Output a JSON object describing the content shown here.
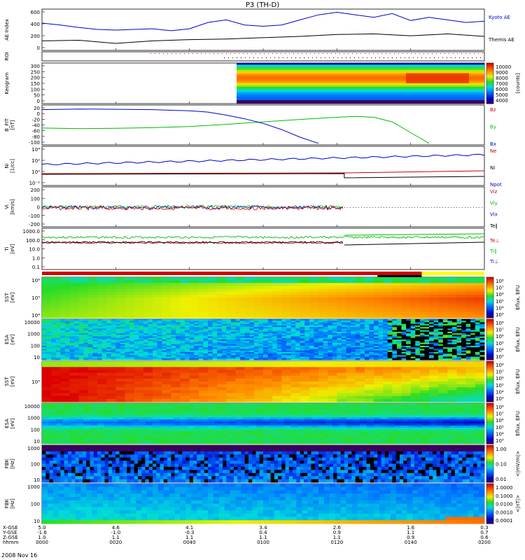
{
  "chart_data": {
    "type": "multi-panel summary plot",
    "title": "P3 (TH-D)",
    "date": "2008 Nov 16",
    "time_range": [
      "0000",
      "0200"
    ],
    "panels": [
      {
        "id": "ae",
        "type": "line",
        "ylabel": "AE Index",
        "yticks": [
          "600",
          "400",
          "200",
          "0"
        ],
        "ylim": [
          0,
          650
        ],
        "series": [
          {
            "name": "Kyoto AE",
            "color": "#0000cc",
            "x": [
              0,
              5,
              10,
              15,
              20,
              25,
              30,
              35,
              40,
              45,
              50,
              55,
              60,
              65,
              70,
              75,
              80,
              85,
              90,
              95,
              100,
              105,
              110,
              115,
              120
            ],
            "values": [
              430,
              400,
              360,
              330,
              320,
              330,
              340,
              310,
              340,
              440,
              480,
              400,
              380,
              400,
              480,
              560,
              600,
              560,
              520,
              580,
              470,
              520,
              480,
              440,
              460
            ]
          },
          {
            "name": "Themis AE",
            "color": "#000000",
            "x": [
              0,
              10,
              20,
              30,
              40,
              50,
              60,
              70,
              80,
              90,
              100,
              110,
              120
            ],
            "values": [
              150,
              160,
              110,
              150,
              170,
              180,
              200,
              220,
              250,
              260,
              230,
              260,
              220
            ]
          }
        ]
      },
      {
        "id": "roi",
        "type": "markers",
        "ylabel": "ROI"
      },
      {
        "id": "keogram",
        "type": "heatmap",
        "ylabel": "Keogram",
        "yticks": [
          "300",
          "250",
          "200",
          "150",
          "100",
          "50",
          "0"
        ],
        "colorbar": {
          "ticks": [
            "10000",
            "9000",
            "8000",
            "7000",
            "6000",
            "5000",
            "4000"
          ],
          "label": "[counts]"
        }
      },
      {
        "id": "bfgm",
        "type": "line",
        "ylabel": "B_FIT",
        "yunits": "[nT]",
        "yticks": [
          "20",
          "0",
          "-20",
          "-40",
          "-60",
          "-80",
          "-100"
        ],
        "ylim": [
          -105,
          25
        ],
        "series": [
          {
            "name": "Bz",
            "color": "#cc0000",
            "x": [],
            "values": []
          },
          {
            "name": "By",
            "color": "#00bb00",
            "x": [
              0,
              10,
              20,
              30,
              40,
              50,
              60,
              70,
              80,
              85,
              90,
              95,
              100,
              105
            ],
            "values": [
              -50,
              -52,
              -51,
              -49,
              -45,
              -38,
              -30,
              -22,
              -15,
              -12,
              -15,
              -30,
              -65,
              -100
            ]
          },
          {
            "name": "Bx",
            "color": "#0000cc",
            "x": [
              0,
              10,
              20,
              30,
              35,
              40,
              45,
              50,
              55,
              60,
              65,
              70,
              75
            ],
            "values": [
              10,
              12,
              11,
              10,
              8,
              6,
              2,
              -8,
              -20,
              -35,
              -55,
              -80,
              -100
            ]
          }
        ]
      },
      {
        "id": "density",
        "type": "line",
        "ylabel": "Ni",
        "yunits": "[1/cc]",
        "yticks": [
          "10⁴",
          "10²",
          "10⁰",
          "10⁻²"
        ],
        "series": [
          {
            "name": "Ne",
            "color": "#cc0000"
          },
          {
            "name": "Ni",
            "color": "#000000"
          },
          {
            "name": "Npot",
            "color": "#0000cc"
          }
        ]
      },
      {
        "id": "velocity",
        "type": "line",
        "ylabel": "Vi",
        "yunits": "[km/s]",
        "yticks": [
          "200",
          "100",
          "0",
          "-100",
          "-200"
        ],
        "ylim": [
          -260,
          260
        ],
        "series": [
          {
            "name": "Viz",
            "color": "#cc0000"
          },
          {
            "name": "Viy",
            "color": "#00bb00"
          },
          {
            "name": "Vix",
            "color": "#0000cc"
          }
        ]
      },
      {
        "id": "temperature",
        "type": "line",
        "ylabel": "Ti",
        "yunits": "[eV]",
        "yticks": [
          "1000.0",
          "100.0",
          "10.0",
          "1.0",
          "0.1"
        ],
        "series": [
          {
            "name": "Te∥",
            "color": "#000000"
          },
          {
            "name": "Te⊥",
            "color": "#cc0000"
          },
          {
            "name": "Ti∥",
            "color": "#00bb00"
          },
          {
            "name": "Ti⊥",
            "color": "#0000cc"
          }
        ]
      },
      {
        "id": "sst_i",
        "type": "spectrogram",
        "ylabel": "SST",
        "yunits": "[eV]",
        "yticks": [
          "10⁶",
          "10⁵",
          "10⁴"
        ],
        "colorbar": {
          "ticks": [
            "10⁸",
            "10⁷",
            "10⁶",
            "10⁵",
            "10⁴",
            "10³"
          ],
          "label": "Eflux, EFU"
        }
      },
      {
        "id": "esa_i",
        "type": "spectrogram",
        "ylabel": "ESA",
        "yunits": "[eV]",
        "yticks": [
          "10000",
          "1000",
          "100",
          "10"
        ],
        "colorbar": {
          "ticks": [
            "10⁸",
            "10⁷",
            "10⁶",
            "10⁵",
            "10⁴",
            "10³"
          ],
          "label": "Eflux, EFU"
        }
      },
      {
        "id": "sst_e",
        "type": "spectrogram",
        "ylabel": "SST",
        "yunits": "[eV]",
        "yticks": [
          "10⁵"
        ],
        "colorbar": {
          "ticks": [
            "10⁸",
            "10⁷",
            "10⁶",
            "10⁵",
            "10⁴",
            "10³"
          ],
          "label": "Eflux, EFU"
        }
      },
      {
        "id": "esa_e",
        "type": "spectrogram",
        "ylabel": "ESA",
        "yunits": "[eV]",
        "yticks": [
          "10000",
          "1000",
          "100",
          "10"
        ],
        "colorbar": {
          "ticks": [
            "10⁸",
            "10⁷",
            "10⁶",
            "10⁵",
            "10⁴",
            "10³"
          ],
          "label": "Eflux, EFU"
        }
      },
      {
        "id": "fbk_b",
        "type": "spectrogram",
        "ylabel": "FBK",
        "yunits": "[Hz]",
        "yticks": [
          "1000",
          "100",
          "10"
        ],
        "colorbar": {
          "ticks": [
            "1.00",
            "0.10",
            "0.01"
          ],
          "label": "<|mV/m|>"
        }
      },
      {
        "id": "fbk_e",
        "type": "spectrogram",
        "ylabel": "FBK",
        "yunits": "[Hz]",
        "yticks": [
          "1000",
          "100",
          "10"
        ],
        "colorbar": {
          "ticks": [
            "1.0000",
            "0.1000",
            "0.0100",
            "0.0010",
            "0.0001"
          ],
          "label": "<|nT|>"
        }
      }
    ],
    "xaxis": {
      "row_labels": [
        "X-GSE",
        "Y-GSE",
        "Z-GSE",
        "hhmm"
      ],
      "ticks": [
        {
          "x": "5.0",
          "y": "-1.6",
          "z": "1.0",
          "t": "0000"
        },
        {
          "x": "4.6",
          "y": "-1.0",
          "z": "1.1",
          "t": "0020"
        },
        {
          "x": "4.1",
          "y": "-0.3",
          "z": "1.1",
          "t": "0040"
        },
        {
          "x": "3.4",
          "y": "0.4",
          "z": "1.1",
          "t": "0100"
        },
        {
          "x": "2.6",
          "y": "0.9",
          "z": "1.1",
          "t": "0120"
        },
        {
          "x": "1.6",
          "y": "1.1",
          "z": "0.9",
          "t": "0140"
        },
        {
          "x": "0.3",
          "y": "0.7",
          "z": "0.6",
          "t": "0200"
        }
      ]
    }
  }
}
